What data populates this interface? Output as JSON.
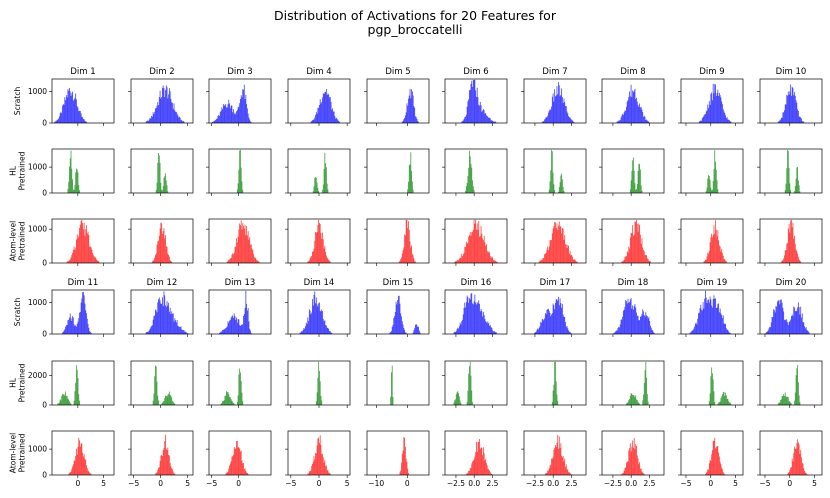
{
  "figure": {
    "title_line1": "Distribution of Activations for 20 Features for",
    "title_line2": "pgp_broccatelli"
  },
  "colors": {
    "Scratch": "#0000ff",
    "HL Pretrained": "#008000",
    "Atom-level Pretrained": "#ff0000",
    "axis": "#000000"
  },
  "row_labels": [
    {
      "label_lines": [
        "Scratch"
      ]
    },
    {
      "label_lines": [
        "HL",
        "Pretrained"
      ]
    },
    {
      "label_lines": [
        "Atom-level",
        "Pretrained"
      ]
    },
    {
      "label_lines": [
        "Scratch"
      ]
    },
    {
      "label_lines": [
        "HL",
        "Pretrained"
      ]
    },
    {
      "label_lines": [
        "Atom-level",
        "Pretrained"
      ]
    }
  ],
  "chart_data": {
    "type": "histogram-grid",
    "title": "Distribution of Activations for 20 Features for pgp_broccatelli",
    "groups": [
      "Scratch",
      "HL Pretrained",
      "Atom-level Pretrained"
    ],
    "panel_titles": [
      "Dim 1",
      "Dim 2",
      "Dim 3",
      "Dim 4",
      "Dim 5",
      "Dim 6",
      "Dim 7",
      "Dim 8",
      "Dim 9",
      "Dim 10",
      "Dim 11",
      "Dim 12",
      "Dim 13",
      "Dim 14",
      "Dim 15",
      "Dim 16",
      "Dim 17",
      "Dim 18",
      "Dim 19",
      "Dim 20"
    ],
    "row_y": [
      {
        "group": "Scratch",
        "ylim": [
          0,
          1400
        ],
        "yticks": [
          0,
          1000
        ]
      },
      {
        "group": "HL Pretrained",
        "ylim": [
          0,
          1700
        ],
        "yticks": [
          0,
          1000
        ]
      },
      {
        "group": "Atom-level Pretrained",
        "ylim": [
          0,
          1300
        ],
        "yticks": [
          0,
          1000
        ]
      },
      {
        "group": "Scratch",
        "ylim": [
          0,
          1400
        ],
        "yticks": [
          0,
          1000
        ]
      },
      {
        "group": "HL Pretrained",
        "ylim": [
          0,
          3000
        ],
        "yticks": [
          0,
          2000
        ]
      },
      {
        "group": "Atom-level Pretrained",
        "ylim": [
          0,
          1700
        ],
        "yticks": [
          0,
          1000
        ]
      }
    ],
    "columns_bottom": [
      {
        "xlim": [
          -5,
          7
        ],
        "xticks": [
          0,
          5
        ],
        "xtick_labels": [
          "0",
          "5"
        ]
      },
      {
        "xlim": [
          -5.5,
          6
        ],
        "xticks": [
          -5,
          0,
          5
        ],
        "xtick_labels": [
          "−5",
          "0",
          "5"
        ]
      },
      {
        "xlim": [
          -5.5,
          6
        ],
        "xticks": [
          -5,
          0
        ],
        "xtick_labels": [
          "−5",
          "0"
        ]
      },
      {
        "xlim": [
          -5.5,
          5.5
        ],
        "xticks": [
          -5,
          0,
          5
        ],
        "xtick_labels": [
          "−5",
          "0",
          "5"
        ]
      },
      {
        "xlim": [
          -13,
          7
        ],
        "xticks": [
          -10,
          0
        ],
        "xtick_labels": [
          "−10",
          "0"
        ]
      },
      {
        "xlim": [
          -4,
          4.5
        ],
        "xticks": [
          -2.5,
          0,
          2.5
        ],
        "xtick_labels": [
          "−2.5",
          "0.0",
          "2.5"
        ]
      },
      {
        "xlim": [
          -4,
          4.5
        ],
        "xticks": [
          -2.5,
          0,
          2.5
        ],
        "xtick_labels": [
          "−2.5",
          "0.0",
          "2.5"
        ]
      },
      {
        "xlim": [
          -4,
          4.5
        ],
        "xticks": [
          -2.5,
          0,
          2.5
        ],
        "xtick_labels": [
          "−2.5",
          "0.0",
          "2.5"
        ]
      },
      {
        "xlim": [
          -6,
          6.5
        ],
        "xticks": [
          -5,
          0,
          5
        ],
        "xtick_labels": [
          "−5",
          "0",
          "5"
        ]
      },
      {
        "xlim": [
          -6,
          6.5
        ],
        "xticks": [
          -5,
          0,
          5
        ],
        "xtick_labels": [
          "−5",
          "0",
          "5"
        ]
      }
    ],
    "hist_bin_width_fraction": 0.0125,
    "distributions": {
      "scratch_top": [
        [
          [
            0.3,
            0.1,
            1.0
          ]
        ],
        [
          [
            0.55,
            0.12,
            1.0
          ]
        ],
        [
          [
            0.55,
            0.05,
            1.0
          ],
          [
            0.3,
            0.1,
            0.6
          ]
        ],
        [
          [
            0.6,
            0.09,
            1.0
          ]
        ],
        [
          [
            0.7,
            0.05,
            1.0
          ]
        ],
        [
          [
            0.45,
            0.06,
            1.0
          ],
          [
            0.55,
            0.12,
            0.4
          ]
        ],
        [
          [
            0.55,
            0.1,
            1.0
          ]
        ],
        [
          [
            0.5,
            0.1,
            1.0
          ]
        ],
        [
          [
            0.55,
            0.1,
            1.0
          ]
        ],
        [
          [
            0.5,
            0.08,
            1.0
          ]
        ]
      ],
      "hl_top": [
        [
          [
            0.3,
            0.02,
            1.0
          ],
          [
            0.4,
            0.02,
            0.7
          ]
        ],
        [
          [
            0.45,
            0.02,
            1.0
          ],
          [
            0.55,
            0.02,
            0.6
          ]
        ],
        [
          [
            0.5,
            0.02,
            1.0
          ]
        ],
        [
          [
            0.6,
            0.02,
            1.0
          ],
          [
            0.45,
            0.02,
            0.5
          ]
        ],
        [
          [
            0.7,
            0.02,
            1.0
          ]
        ],
        [
          [
            0.4,
            0.03,
            1.0
          ]
        ],
        [
          [
            0.45,
            0.02,
            1.0
          ],
          [
            0.6,
            0.02,
            0.5
          ]
        ],
        [
          [
            0.5,
            0.02,
            1.0
          ],
          [
            0.6,
            0.02,
            0.8
          ]
        ],
        [
          [
            0.55,
            0.02,
            1.0
          ],
          [
            0.45,
            0.02,
            0.5
          ]
        ],
        [
          [
            0.45,
            0.02,
            1.0
          ],
          [
            0.6,
            0.02,
            0.6
          ]
        ]
      ],
      "atom_top": [
        [
          [
            0.5,
            0.1,
            1.0
          ]
        ],
        [
          [
            0.5,
            0.06,
            1.0
          ]
        ],
        [
          [
            0.55,
            0.1,
            1.0
          ]
        ],
        [
          [
            0.5,
            0.07,
            1.0
          ]
        ],
        [
          [
            0.65,
            0.05,
            1.0
          ]
        ],
        [
          [
            0.5,
            0.13,
            1.0
          ]
        ],
        [
          [
            0.55,
            0.12,
            1.0
          ]
        ],
        [
          [
            0.55,
            0.09,
            1.0
          ]
        ],
        [
          [
            0.55,
            0.07,
            1.0
          ]
        ],
        [
          [
            0.5,
            0.06,
            1.0
          ]
        ]
      ],
      "scratch_bot": [
        [
          [
            0.5,
            0.05,
            1.0
          ],
          [
            0.3,
            0.06,
            0.5
          ]
        ],
        [
          [
            0.5,
            0.1,
            1.0
          ],
          [
            0.7,
            0.1,
            0.3
          ]
        ],
        [
          [
            0.6,
            0.03,
            1.0
          ],
          [
            0.4,
            0.1,
            0.5
          ]
        ],
        [
          [
            0.45,
            0.1,
            1.0
          ]
        ],
        [
          [
            0.5,
            0.05,
            1.0
          ],
          [
            0.8,
            0.03,
            0.3
          ]
        ],
        [
          [
            0.4,
            0.1,
            1.0
          ],
          [
            0.6,
            0.1,
            0.5
          ]
        ],
        [
          [
            0.55,
            0.08,
            1.0
          ],
          [
            0.35,
            0.08,
            0.5
          ]
        ],
        [
          [
            0.45,
            0.1,
            1.0
          ],
          [
            0.7,
            0.06,
            0.6
          ]
        ],
        [
          [
            0.4,
            0.1,
            1.0
          ],
          [
            0.6,
            0.08,
            0.7
          ]
        ],
        [
          [
            0.3,
            0.08,
            1.0
          ],
          [
            0.6,
            0.08,
            0.8
          ]
        ]
      ],
      "hl_bot": [
        [
          [
            0.4,
            0.02,
            1.0
          ],
          [
            0.2,
            0.05,
            0.3
          ]
        ],
        [
          [
            0.4,
            0.02,
            1.0
          ],
          [
            0.6,
            0.05,
            0.3
          ]
        ],
        [
          [
            0.5,
            0.02,
            1.0
          ],
          [
            0.3,
            0.05,
            0.3
          ]
        ],
        [
          [
            0.5,
            0.02,
            1.0
          ]
        ],
        [
          [
            0.4,
            0.01,
            1.0
          ]
        ],
        [
          [
            0.4,
            0.02,
            1.0
          ],
          [
            0.2,
            0.03,
            0.3
          ]
        ],
        [
          [
            0.5,
            0.02,
            1.0
          ]
        ],
        [
          [
            0.7,
            0.02,
            1.0
          ],
          [
            0.5,
            0.05,
            0.3
          ]
        ],
        [
          [
            0.5,
            0.02,
            1.0
          ],
          [
            0.7,
            0.05,
            0.3
          ]
        ],
        [
          [
            0.6,
            0.02,
            1.0
          ],
          [
            0.4,
            0.05,
            0.3
          ]
        ]
      ],
      "atom_bot": [
        [
          [
            0.45,
            0.07,
            1.0
          ]
        ],
        [
          [
            0.55,
            0.06,
            1.0
          ]
        ],
        [
          [
            0.45,
            0.07,
            1.0
          ]
        ],
        [
          [
            0.5,
            0.07,
            1.0
          ]
        ],
        [
          [
            0.6,
            0.03,
            1.0
          ]
        ],
        [
          [
            0.55,
            0.08,
            1.0
          ]
        ],
        [
          [
            0.55,
            0.08,
            1.0
          ]
        ],
        [
          [
            0.5,
            0.07,
            1.0
          ]
        ],
        [
          [
            0.55,
            0.06,
            1.0
          ]
        ],
        [
          [
            0.6,
            0.06,
            1.0
          ]
        ]
      ]
    },
    "row_order": [
      "scratch_top",
      "hl_top",
      "atom_top",
      "scratch_bot",
      "hl_bot",
      "atom_bot"
    ],
    "row_peak_fraction": [
      0.75,
      0.85,
      0.85,
      0.8,
      0.9,
      0.75
    ]
  }
}
